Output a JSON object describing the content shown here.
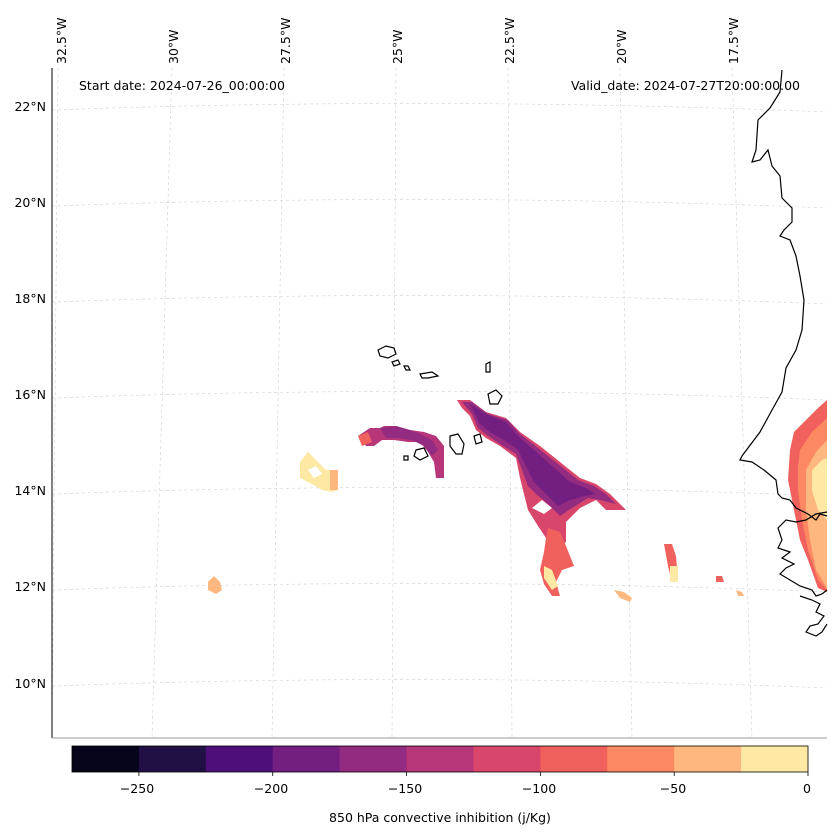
{
  "header": {
    "start_date": "Start date: 2024-07-26_00:00:00",
    "valid_date": "Valid_date: 2024-07-27T20:00:00.00"
  },
  "axes": {
    "longitude_labels": [
      "32.5°W",
      "30°W",
      "27.5°W",
      "25°W",
      "22.5°W",
      "20°W",
      "17.5°W"
    ],
    "latitude_labels": [
      "22°N",
      "20°N",
      "18°N",
      "16°N",
      "14°N",
      "12°N",
      "10°N"
    ]
  },
  "colorbar": {
    "label": "850 hPa convective inhibition (j/Kg)",
    "ticks": [
      "−250",
      "−200",
      "−150",
      "−100",
      "−50",
      "0"
    ],
    "levels": [
      -275,
      -250,
      -225,
      -200,
      -175,
      -150,
      -125,
      -100,
      -75,
      -50,
      -25,
      0
    ],
    "colors": [
      "#06051b",
      "#211046",
      "#4f0f7b",
      "#721f81",
      "#932b80",
      "#b63679",
      "#d9466b",
      "#f0605d",
      "#fc8961",
      "#feb77e",
      "#fde8a4"
    ]
  },
  "colors": {
    "coastline": "#000000",
    "gridline": "#cccccc"
  }
}
